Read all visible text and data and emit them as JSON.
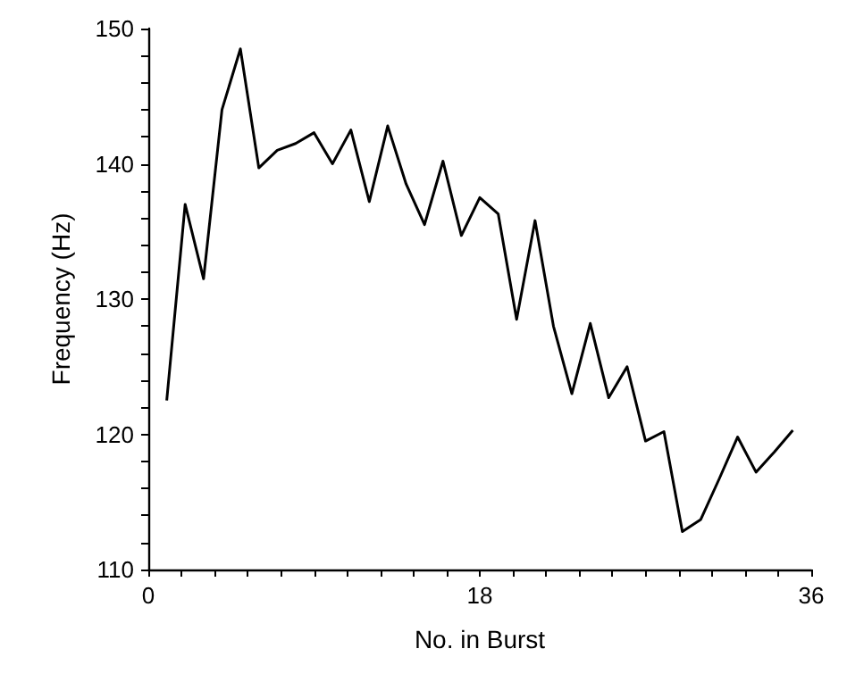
{
  "chart_data": {
    "type": "line",
    "xlabel": "No. in Burst",
    "ylabel": "Frequency (Hz)",
    "x": [
      1,
      2,
      3,
      4,
      5,
      6,
      7,
      8,
      9,
      10,
      11,
      12,
      13,
      14,
      15,
      16,
      17,
      18,
      19,
      20,
      21,
      22,
      23,
      24,
      25,
      26,
      27,
      28,
      29,
      30,
      31,
      32,
      33,
      34,
      35
    ],
    "series": [
      {
        "color": "#000000",
        "values": [
          122.5,
          137,
          131.5,
          144,
          148.5,
          139.7,
          141,
          141.5,
          142.3,
          140,
          142.5,
          137.2,
          142.8,
          138.5,
          135.5,
          140.2,
          134.7,
          137.5,
          136.3,
          128.5,
          135.8,
          128,
          123,
          128.2,
          122.7,
          125,
          119.5,
          120.2,
          112.8,
          113.7,
          116.7,
          119.8,
          117.2,
          118.7,
          120.3
        ]
      }
    ],
    "xlim": [
      0,
      36
    ],
    "xticks": [
      0,
      {
        "value": 1.8,
        "label": null
      },
      {
        "value": 3.6,
        "label": null
      },
      {
        "value": 5.4,
        "label": null
      },
      {
        "value": 7.2,
        "label": null
      },
      {
        "value": 9,
        "label": null
      },
      {
        "value": 10.8,
        "label": null
      },
      {
        "value": 12.6,
        "label": null
      },
      {
        "value": 14.4,
        "label": null
      },
      {
        "value": 16.2,
        "label": null
      },
      18,
      {
        "value": 19.8,
        "label": null
      },
      {
        "value": 21.6,
        "label": null
      },
      {
        "value": 23.4,
        "label": null
      },
      {
        "value": 25.2,
        "label": null
      },
      {
        "value": 27,
        "label": null
      },
      {
        "value": 28.8,
        "label": null
      },
      {
        "value": 30.6,
        "label": null
      },
      {
        "value": 32.4,
        "label": null
      },
      {
        "value": 34.2,
        "label": null
      },
      36
    ],
    "ylim": [
      110,
      150
    ],
    "yticks": [
      110,
      {
        "value": 112,
        "label": null
      },
      {
        "value": 114,
        "label": null
      },
      {
        "value": 116,
        "label": null
      },
      {
        "value": 118,
        "label": null
      },
      120,
      {
        "value": 122,
        "label": null
      },
      {
        "value": 124,
        "label": null
      },
      {
        "value": 126,
        "label": null
      },
      {
        "value": 128,
        "label": null
      },
      130,
      {
        "value": 132,
        "label": null
      },
      {
        "value": 134,
        "label": null
      },
      {
        "value": 136,
        "label": null
      },
      {
        "value": 138,
        "label": null
      },
      140,
      {
        "value": 142,
        "label": null
      },
      {
        "value": 144,
        "label": null
      },
      {
        "value": 146,
        "label": null
      },
      {
        "value": 148,
        "label": null
      },
      150
    ],
    "grid": false,
    "marker": "none",
    "line_style": "solid"
  }
}
